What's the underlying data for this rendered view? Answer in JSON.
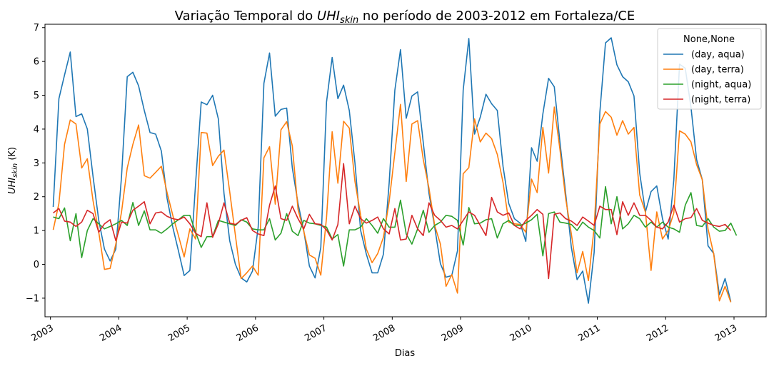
{
  "chart_data": {
    "type": "line",
    "title_prefix": "Variação Temporal do ",
    "title_var": "UHI",
    "title_sub": "skin",
    "title_suffix": " no período de 2003-2012 em Fortaleza/CE",
    "xlabel": "Dias",
    "ylabel_var": "UHI",
    "ylabel_sub": "skin",
    "ylabel_unit": " (K)",
    "xlim": [
      2002.92,
      2013.47
    ],
    "ylim": [
      -1.55,
      7.1
    ],
    "yticks": [
      -1,
      0,
      1,
      2,
      3,
      4,
      5,
      6,
      7
    ],
    "xticks": [
      "2003",
      "2004",
      "2005",
      "2006",
      "2007",
      "2008",
      "2009",
      "2010",
      "2011",
      "2012",
      "2013"
    ],
    "legend": {
      "title": "None,None",
      "position": "top-right"
    },
    "series": [
      {
        "name": "(day, aqua)",
        "color": "#1f77b4",
        "start": 2003.04,
        "step": 0.0833,
        "values": [
          1.7,
          4.9,
          5.6,
          6.28,
          4.37,
          4.45,
          4.0,
          2.6,
          1.3,
          0.45,
          0.1,
          0.45,
          2.6,
          5.55,
          5.68,
          5.28,
          4.55,
          3.9,
          3.85,
          3.35,
          1.95,
          1.1,
          0.4,
          -0.33,
          -0.18,
          2.38,
          4.8,
          4.72,
          5.0,
          4.3,
          2.1,
          0.7,
          0.0,
          -0.4,
          -0.52,
          -0.2,
          1.1,
          5.35,
          6.25,
          4.38,
          4.58,
          4.62,
          2.85,
          1.8,
          1.0,
          -0.05,
          -0.4,
          0.5,
          4.8,
          6.12,
          4.9,
          5.3,
          4.55,
          3.0,
          1.0,
          0.3,
          -0.25,
          -0.25,
          0.3,
          2.4,
          5.15,
          6.35,
          4.32,
          4.98,
          5.1,
          3.6,
          2.1,
          1.1,
          0.02,
          -0.38,
          -0.33,
          0.4,
          5.15,
          6.68,
          3.85,
          4.35,
          5.03,
          4.75,
          4.55,
          2.9,
          1.8,
          1.35,
          1.22,
          0.68,
          3.45,
          3.05,
          4.45,
          5.5,
          5.25,
          3.62,
          2.1,
          0.5,
          -0.45,
          -0.2,
          -1.15,
          0.35,
          4.5,
          6.55,
          6.7,
          5.9,
          5.55,
          5.4,
          4.98,
          2.7,
          1.55,
          2.15,
          2.32,
          1.35,
          0.75,
          2.5,
          5.92,
          5.8,
          4.65,
          3.1,
          2.5,
          0.55,
          0.32,
          -0.9,
          -0.42,
          -1.1
        ]
      },
      {
        "name": "(day, terra)",
        "color": "#ff7f0e",
        "start": 2003.04,
        "step": 0.0833,
        "values": [
          1.02,
          1.8,
          3.55,
          4.27,
          4.15,
          2.85,
          3.12,
          1.88,
          0.95,
          -0.15,
          -0.12,
          0.6,
          1.55,
          2.85,
          3.55,
          4.12,
          2.62,
          2.55,
          2.72,
          2.9,
          2.12,
          1.45,
          0.85,
          0.22,
          1.05,
          0.75,
          3.9,
          3.88,
          2.92,
          3.2,
          3.38,
          2.15,
          0.85,
          -0.42,
          -0.25,
          -0.05,
          -0.32,
          3.15,
          3.48,
          1.78,
          3.98,
          4.22,
          3.5,
          1.62,
          0.98,
          0.28,
          0.18,
          -0.32,
          1.38,
          3.92,
          2.4,
          4.23,
          4.03,
          2.45,
          1.45,
          0.45,
          0.05,
          0.32,
          0.8,
          1.85,
          3.3,
          4.73,
          2.45,
          4.15,
          4.25,
          3.1,
          2.25,
          1.15,
          0.6,
          -0.65,
          -0.3,
          -0.85,
          2.68,
          2.86,
          4.3,
          3.62,
          3.88,
          3.72,
          3.25,
          2.42,
          1.25,
          1.2,
          1.18,
          0.95,
          2.52,
          2.12,
          4.05,
          2.7,
          4.65,
          3.4,
          1.95,
          0.9,
          -0.25,
          0.38,
          -0.48,
          1.08,
          4.15,
          4.52,
          4.35,
          3.82,
          4.25,
          3.85,
          4.05,
          2.05,
          1.55,
          -0.18,
          1.55,
          0.75,
          1.0,
          1.52,
          3.95,
          3.85,
          3.62,
          2.95,
          2.5,
          1.05,
          0.3,
          -1.08,
          -0.65,
          -1.12
        ]
      },
      {
        "name": "(night, aqua)",
        "color": "#2ca02c",
        "start": 2003.04,
        "step": 0.0833,
        "values": [
          1.4,
          1.35,
          1.67,
          0.7,
          1.5,
          0.2,
          1.0,
          1.35,
          1.2,
          1.05,
          1.12,
          1.2,
          1.3,
          1.15,
          1.83,
          1.15,
          1.58,
          1.02,
          1.02,
          0.92,
          1.05,
          1.2,
          1.32,
          1.45,
          1.45,
          0.95,
          0.5,
          0.82,
          0.82,
          1.3,
          1.25,
          1.2,
          1.15,
          1.32,
          1.25,
          1.05,
          1.02,
          1.02,
          1.35,
          0.72,
          0.92,
          1.5,
          0.98,
          0.85,
          1.3,
          1.22,
          1.2,
          1.15,
          1.1,
          0.75,
          0.88,
          -0.05,
          1.02,
          1.02,
          1.1,
          1.35,
          1.15,
          0.92,
          1.35,
          1.1,
          1.1,
          1.9,
          0.9,
          0.6,
          1.05,
          1.6,
          0.95,
          1.15,
          1.25,
          1.45,
          1.42,
          1.3,
          0.57,
          1.68,
          1.2,
          1.22,
          1.32,
          1.35,
          0.78,
          1.2,
          1.3,
          1.15,
          1.15,
          1.22,
          1.32,
          1.48,
          0.25,
          1.5,
          1.55,
          1.25,
          1.22,
          1.18,
          1.0,
          1.25,
          1.1,
          1.0,
          0.78,
          2.3,
          1.2,
          2.0,
          1.05,
          1.2,
          1.45,
          1.35,
          1.1,
          1.25,
          1.1,
          1.25,
          1.1,
          1.05,
          0.95,
          1.75,
          2.12,
          1.15,
          1.12,
          1.35,
          1.1,
          0.98,
          1.0,
          1.22,
          0.85
        ]
      },
      {
        "name": "(night, terra)",
        "color": "#d62728",
        "start": 2003.04,
        "step": 0.0833,
        "values": [
          1.52,
          1.65,
          1.28,
          1.25,
          1.12,
          1.25,
          1.6,
          1.5,
          0.95,
          1.2,
          1.32,
          0.7,
          1.25,
          1.22,
          1.6,
          1.72,
          1.85,
          1.2,
          1.52,
          1.55,
          1.42,
          1.35,
          1.32,
          1.4,
          1.2,
          0.92,
          0.82,
          1.82,
          0.8,
          1.2,
          1.82,
          1.22,
          1.18,
          1.3,
          1.38,
          1.0,
          0.9,
          0.85,
          1.75,
          2.32,
          1.35,
          1.3,
          1.72,
          1.35,
          1.05,
          1.48,
          1.2,
          1.18,
          1.02,
          0.72,
          1.18,
          2.98,
          1.2,
          1.72,
          1.35,
          1.22,
          1.3,
          1.4,
          1.05,
          0.9,
          1.65,
          0.72,
          0.75,
          1.45,
          1.05,
          0.85,
          1.82,
          1.45,
          1.3,
          1.1,
          1.15,
          1.05,
          1.3,
          1.55,
          1.45,
          1.15,
          0.85,
          1.98,
          1.55,
          1.45,
          1.52,
          1.15,
          1.05,
          1.3,
          1.45,
          1.62,
          1.48,
          -0.42,
          1.48,
          1.52,
          1.35,
          1.28,
          1.15,
          1.4,
          1.28,
          1.15,
          1.72,
          1.62,
          1.62,
          0.88,
          1.85,
          1.45,
          1.82,
          1.45,
          1.45,
          1.3,
          1.1,
          1.05,
          1.25,
          1.75,
          1.25,
          1.35,
          1.38,
          1.65,
          1.3,
          1.22,
          1.15,
          1.12,
          1.18,
          1.0
        ]
      }
    ]
  }
}
